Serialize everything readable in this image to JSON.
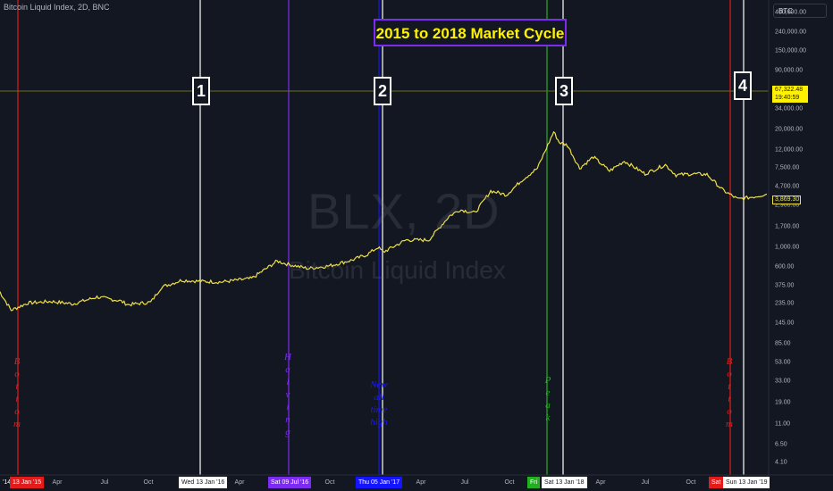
{
  "header": {
    "symbol_info": "Bitcoin Liquid Index, 2D, BNC",
    "symbol_box": "BTC"
  },
  "annotations": {
    "title": "2015 to 2018 Market Cycle",
    "boxes": [
      "1",
      "2",
      "3",
      "4"
    ],
    "watermark_symbol": "BLX, 2D",
    "watermark_name": "Bitcoin Liquid Index",
    "bottom1_text": [
      "B",
      "o",
      "t",
      "t",
      "o",
      "m"
    ],
    "halving_text": [
      "H",
      "a",
      "l",
      "v",
      "i",
      "n",
      "g"
    ],
    "ath_text": [
      "New",
      "all",
      "time",
      "high"
    ],
    "peak_text": [
      "P",
      "e",
      "a",
      "k"
    ],
    "bottom2_text": [
      "B",
      "o",
      "t",
      "t",
      "o",
      "m"
    ]
  },
  "price_tags": {
    "current_price": "67,322.48",
    "countdown": "19:40:59",
    "last_close": "3,869.30"
  },
  "colors": {
    "background": "#131722",
    "series": "#f0e142",
    "bottom_line": "#e31b1b",
    "halving_line": "#7b2cf0",
    "ath_line": "#1414ff",
    "peak_line": "#22b022",
    "cycle_line": "#ffffff",
    "title_border": "#7b2cf0",
    "title_text": "#fff200"
  },
  "x_axis": {
    "labels": [
      "Apr",
      "Jul",
      "Oct",
      "Apr",
      "Oct",
      "Apr",
      "Jul",
      "Oct",
      "Apr",
      "Jul",
      "Oct"
    ],
    "highlights": [
      {
        "text": "'14",
        "color": "#131722"
      },
      {
        "text": "13 Jan '15",
        "color": "#e31b1b"
      },
      {
        "text": "Wed 13 Jan '16",
        "color": "#ffffff"
      },
      {
        "text": "Sat 09 Jul '16",
        "color": "#7b2cf0"
      },
      {
        "text": "Thu 05 Jan '17",
        "color": "#1414ff"
      },
      {
        "text": "Fri",
        "color": "#22b022"
      },
      {
        "text": "Sat 13 Jan '18",
        "color": "#ffffff"
      },
      {
        "text": "Sat",
        "color": "#e31b1b"
      },
      {
        "text": "Sun 13 Jan '19",
        "color": "#ffffff"
      }
    ]
  },
  "chart_data": {
    "type": "line",
    "title": "",
    "xlabel": "",
    "ylabel": "",
    "log_scale": true,
    "ylim": [
      4.1,
      400000
    ],
    "y_ticks": [
      "400,000.00",
      "240,000.00",
      "150,000.00",
      "90,000.00",
      "55,000.00",
      "34,000.00",
      "20,000.00",
      "12,000.00",
      "7,500.00",
      "4,700.00",
      "2,900.00",
      "1,700.00",
      "1,000.00",
      "600.00",
      "375.00",
      "235.00",
      "145.00",
      "85.00",
      "53.00",
      "33.00",
      "19.00",
      "11.00",
      "6.50",
      "4.10"
    ],
    "series": [
      {
        "x": [
          "2014-12-20",
          "2015-01-13",
          "2015-02-15",
          "2015-04-01",
          "2015-05-15",
          "2015-07-01",
          "2015-08-15",
          "2015-09-01",
          "2015-10-15",
          "2015-11-05",
          "2015-12-15",
          "2016-01-13",
          "2016-03-01",
          "2016-05-01",
          "2016-06-20",
          "2016-07-09",
          "2016-08-20",
          "2016-10-01",
          "2016-11-15",
          "2016-12-15",
          "2017-01-05",
          "2017-01-15",
          "2017-03-01",
          "2017-04-15",
          "2017-05-25",
          "2017-06-15",
          "2017-07-15",
          "2017-08-15",
          "2017-09-15",
          "2017-10-15",
          "2017-11-15",
          "2017-12-17",
          "2017-12-28",
          "2018-01-13",
          "2018-02-06",
          "2018-03-05",
          "2018-04-06",
          "2018-05-05",
          "2018-06-15",
          "2018-07-25",
          "2018-08-15",
          "2018-09-15",
          "2018-10-15",
          "2018-11-15",
          "2018-12-15",
          "2019-01-13",
          "2019-02-10"
        ],
        "values": [
          330,
          200,
          240,
          250,
          235,
          280,
          255,
          230,
          245,
          360,
          430,
          420,
          410,
          450,
          700,
          650,
          580,
          620,
          720,
          830,
          1000,
          880,
          1200,
          1200,
          2200,
          2600,
          2400,
          4200,
          3800,
          5500,
          7500,
          19000,
          14500,
          13500,
          7500,
          10000,
          7000,
          9000,
          6500,
          8200,
          6300,
          6500,
          6400,
          4300,
          3400,
          3600,
          3869
        ]
      }
    ]
  }
}
